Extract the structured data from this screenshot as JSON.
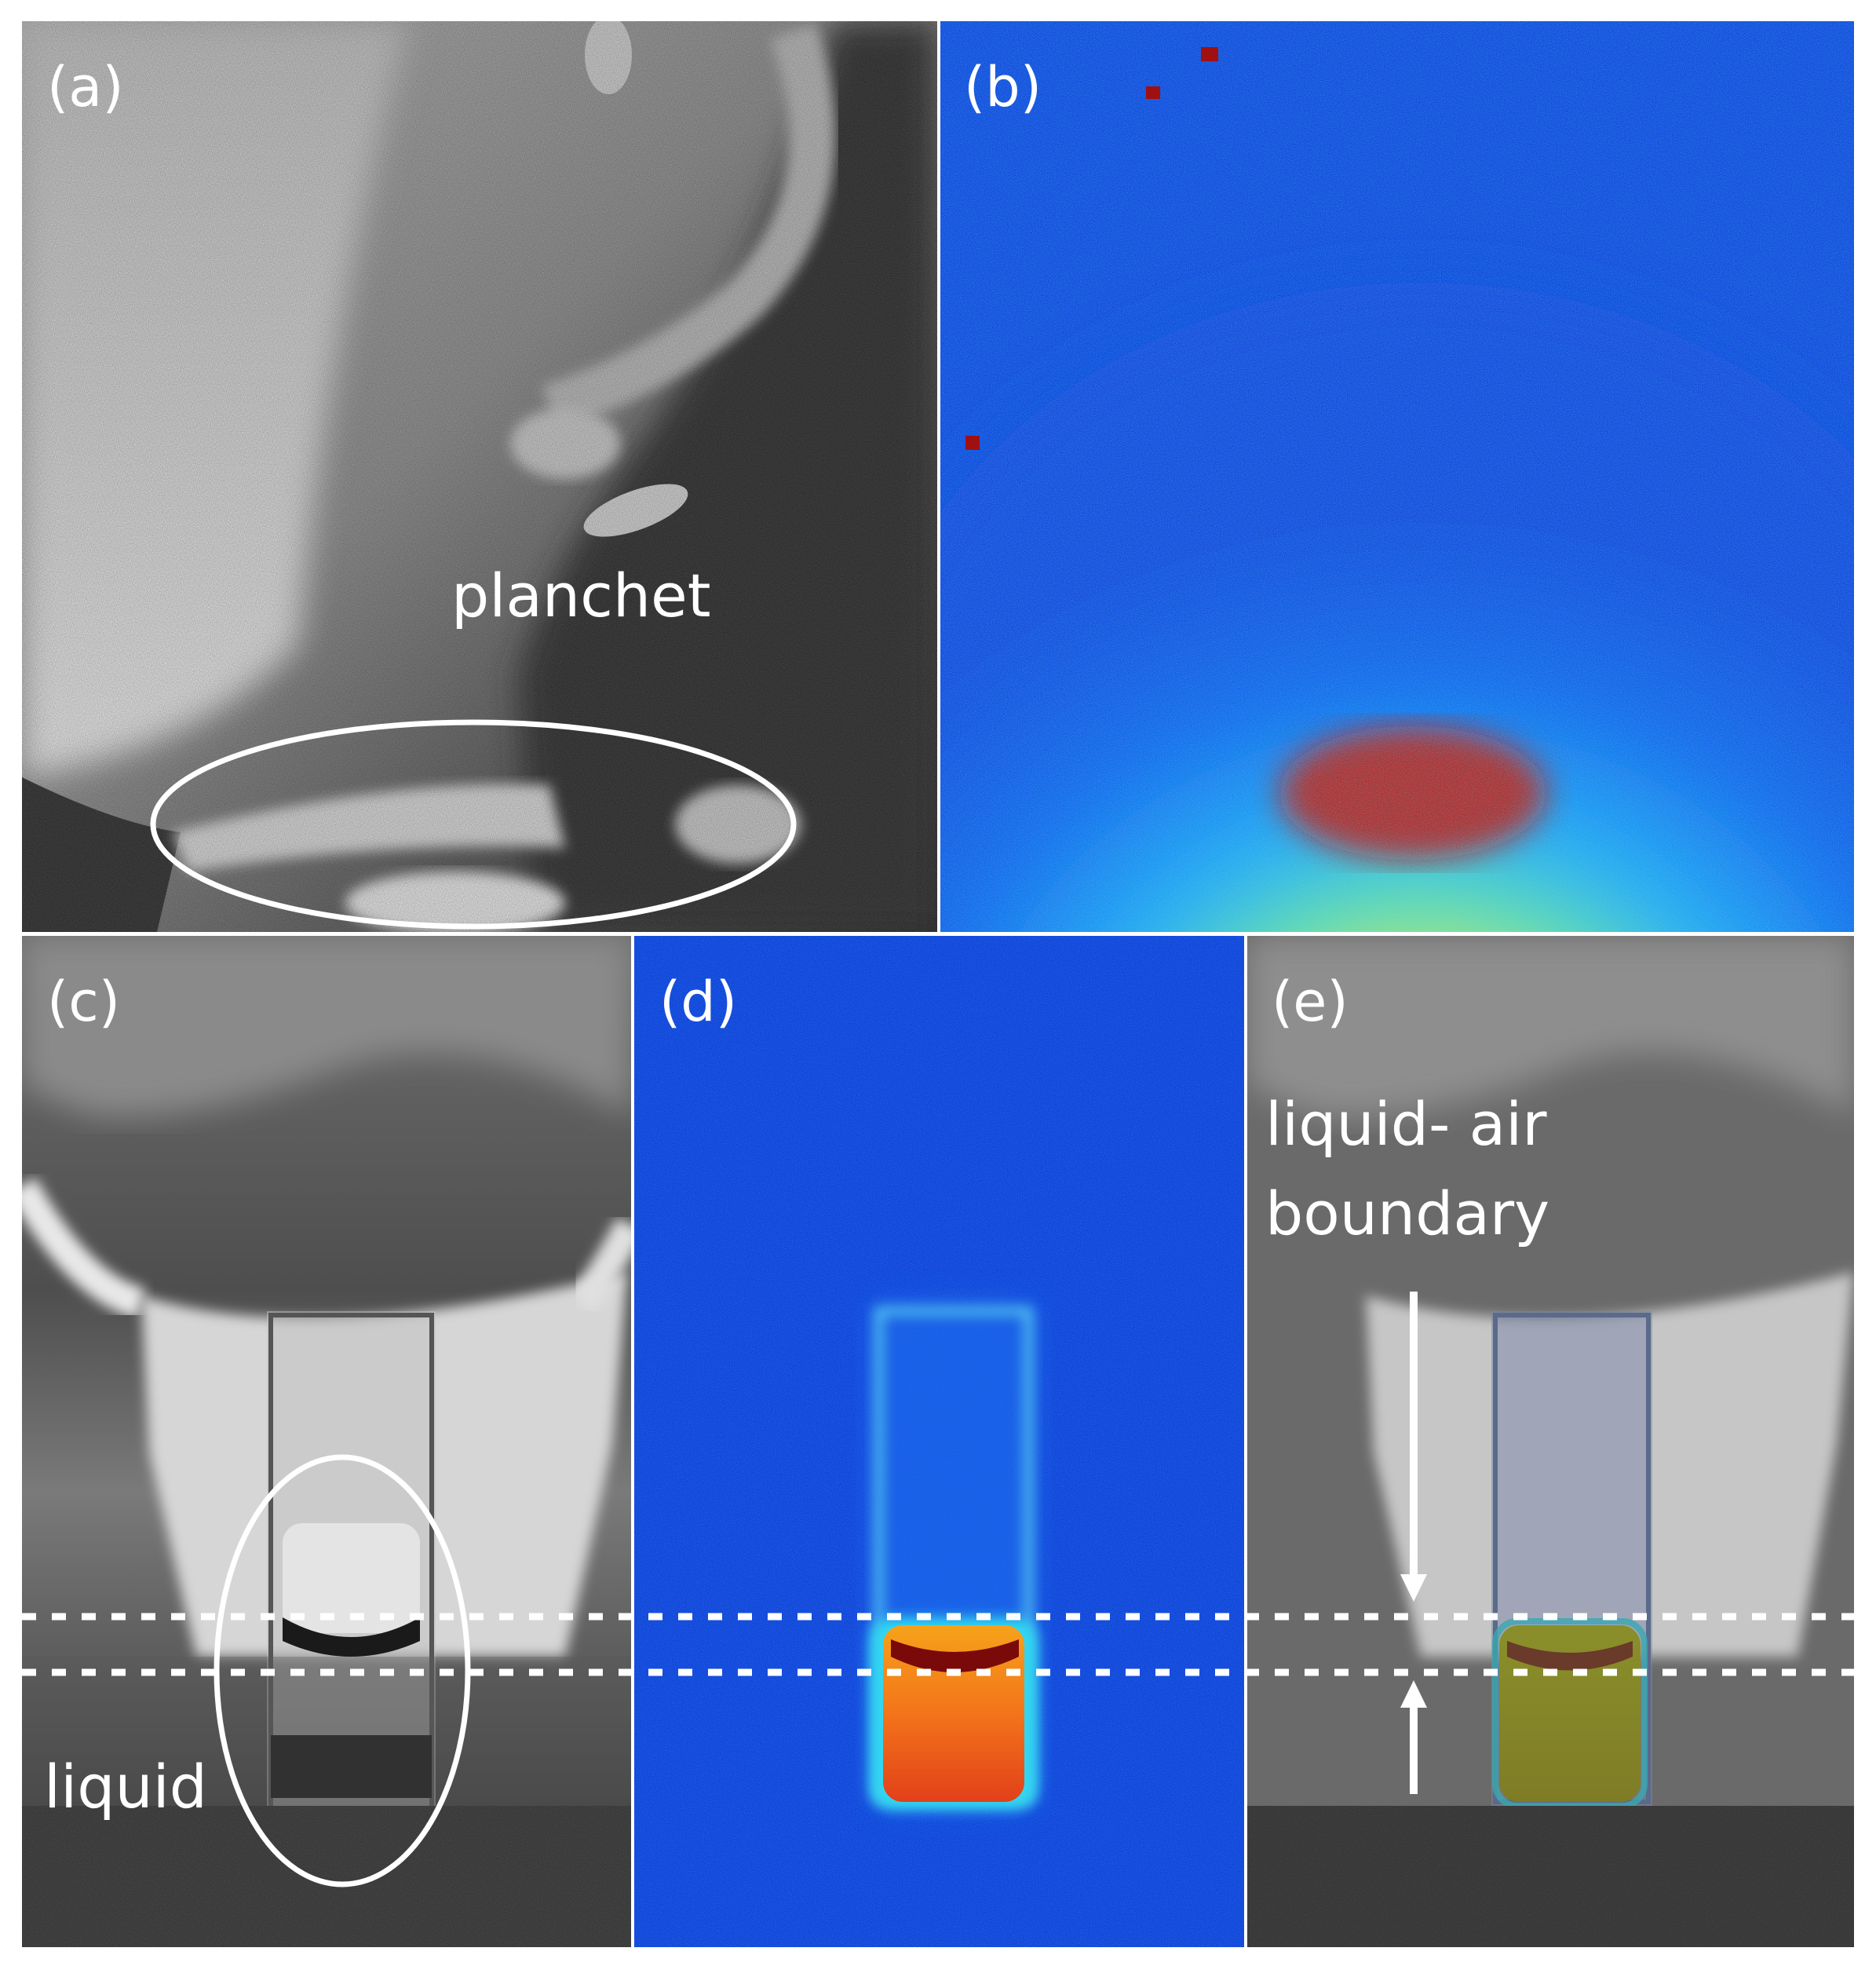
{
  "figure": {
    "panels": {
      "a": {
        "label": "(a)",
        "annotation": "planchet",
        "style": "grayscale photograph"
      },
      "b": {
        "label": "(b)",
        "style": "jet colormap emission image"
      },
      "c": {
        "label": "(c)",
        "annotation": "liquid",
        "style": "grayscale photograph"
      },
      "d": {
        "label": "(d)",
        "style": "jet colormap emission image"
      },
      "e": {
        "label": "(e)",
        "annotation_line1": "liquid- air",
        "annotation_line2": "boundary",
        "style": "overlay of (c) and (d)"
      }
    },
    "colors": {
      "annotation": "#ffffff",
      "jet_background": "#0a2fd6",
      "jet_hot": "#e8200a",
      "jet_warm": "#ffd21a",
      "border": "#ffffff"
    },
    "markers": {
      "ellipse_a": "circled planchet region",
      "ellipse_c": "circled liquid region",
      "dotted_lines": "liquid-air boundary guides",
      "arrows": "boundary arrows"
    }
  }
}
